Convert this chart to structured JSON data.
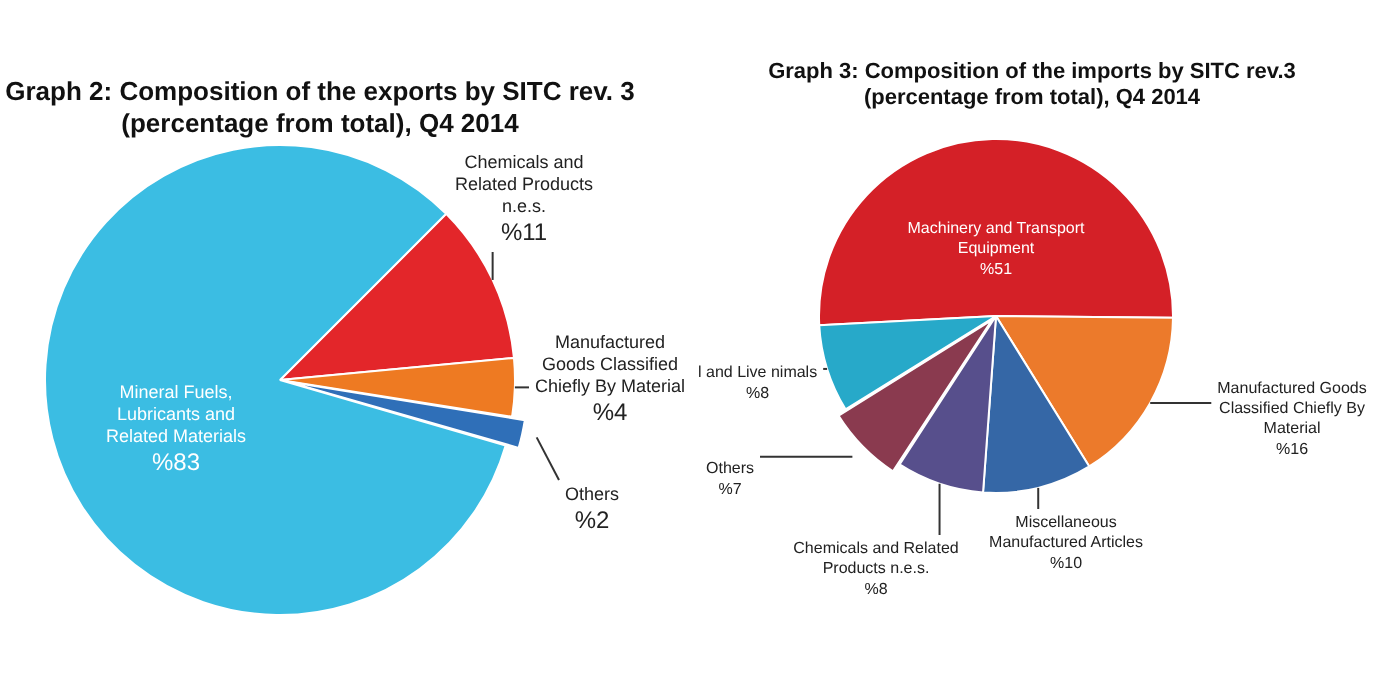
{
  "chart_data": [
    {
      "type": "pie",
      "title": "Graph 2: Composition of the exports by SITC rev. 3 (percentage from total), Q4 2014",
      "categories": [
        "Chemicals and Related Products n.e.s.",
        "Manufactured Goods Classified Chiefly By Material",
        "Others",
        "Mineral Fuels, Lubricants and Related Materials"
      ],
      "values": [
        11,
        4,
        2,
        83
      ],
      "colors": [
        "#e3262a",
        "#ee7a22",
        "#2f6fb8",
        "#3bbde3"
      ],
      "value_labels": [
        "%11",
        "%4",
        "%2",
        "%83"
      ]
    },
    {
      "type": "pie",
      "title": "Graph 3: Composition of the imports by SITC rev.3 (percentage from total), Q4 2014",
      "categories": [
        "Machinery and Transport Equipment",
        "Manufactured Goods Classified Chiefly By Material",
        "Miscellaneous Manufactured Articles",
        "Chemicals and Related Products n.e.s.",
        "Others",
        "l and Live nimals"
      ],
      "values": [
        51,
        16,
        10,
        8,
        7,
        8
      ],
      "colors": [
        "#d42027",
        "#ec7a2b",
        "#3567a6",
        "#574f8c",
        "#8a3a4f",
        "#27a9c9"
      ],
      "value_labels": [
        "%51",
        "%16",
        "%10",
        "%8",
        "%7",
        "%8"
      ]
    }
  ]
}
